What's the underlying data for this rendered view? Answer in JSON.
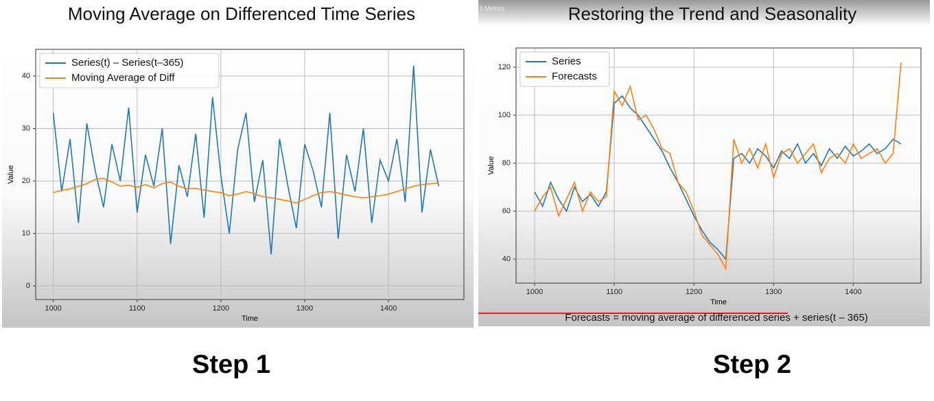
{
  "chart_data": [
    {
      "type": "line",
      "title": "Moving Average on Differenced Time Series",
      "xlabel": "Time",
      "ylabel": "Value",
      "x": [
        1000,
        1010,
        1020,
        1030,
        1040,
        1050,
        1060,
        1070,
        1080,
        1090,
        1100,
        1110,
        1120,
        1130,
        1140,
        1150,
        1160,
        1170,
        1180,
        1190,
        1200,
        1210,
        1220,
        1230,
        1240,
        1250,
        1260,
        1270,
        1280,
        1290,
        1300,
        1310,
        1320,
        1330,
        1340,
        1350,
        1360,
        1370,
        1380,
        1390,
        1400,
        1410,
        1420,
        1430,
        1440,
        1450,
        1460
      ],
      "series": [
        {
          "name": "Series(t) – Series(t–365)",
          "color": "#1f77b4",
          "values": [
            33,
            18,
            28,
            12,
            31,
            22,
            15,
            27,
            20,
            34,
            14,
            25,
            19,
            30,
            8,
            23,
            17,
            29,
            13,
            36,
            21,
            10,
            26,
            33,
            16,
            24,
            6,
            28,
            19,
            11,
            27,
            22,
            15,
            33,
            9,
            25,
            18,
            30,
            12,
            24,
            20,
            28,
            16,
            42,
            14,
            26,
            19
          ]
        },
        {
          "name": "Moving Average of Diff",
          "color": "#ff7f0e",
          "values": [
            17.8,
            18.2,
            18.5,
            19,
            19.5,
            20.3,
            20.5,
            19.8,
            19,
            19.2,
            18.8,
            19.3,
            18.7,
            19.5,
            19.8,
            19,
            18.5,
            18.6,
            18.3,
            18,
            17.8,
            17.2,
            17.5,
            18,
            17.6,
            17,
            16.8,
            16.5,
            16.2,
            15.8,
            16.5,
            17.2,
            17.8,
            18,
            17.7,
            17.3,
            17,
            16.8,
            17,
            17.2,
            17.5,
            18,
            18.5,
            19,
            19.3,
            19.5,
            19.6
          ]
        }
      ],
      "xlim": [
        979,
        1490
      ],
      "ylim": [
        -2.6,
        45.1
      ],
      "xticks": [
        1000,
        1100,
        1200,
        1300,
        1400
      ],
      "yticks": [
        0,
        10,
        20,
        30,
        40
      ],
      "grid": true,
      "legend": "upper left"
    },
    {
      "type": "line",
      "title": "Restoring the Trend and Seasonality",
      "xlabel": "Time",
      "ylabel": "Value",
      "x": [
        1000,
        1010,
        1020,
        1030,
        1040,
        1050,
        1060,
        1070,
        1080,
        1090,
        1100,
        1110,
        1120,
        1130,
        1140,
        1150,
        1160,
        1170,
        1180,
        1190,
        1200,
        1210,
        1220,
        1230,
        1240,
        1250,
        1260,
        1270,
        1280,
        1290,
        1300,
        1310,
        1320,
        1330,
        1340,
        1350,
        1360,
        1370,
        1380,
        1390,
        1400,
        1410,
        1420,
        1430,
        1440,
        1450,
        1460
      ],
      "series": [
        {
          "name": "Series",
          "color": "#1f77b4",
          "values": [
            68,
            62,
            72,
            65,
            60,
            70,
            64,
            67,
            62,
            68,
            105,
            108,
            103,
            100,
            95,
            90,
            85,
            78,
            72,
            65,
            58,
            52,
            47,
            44,
            40,
            82,
            84,
            80,
            86,
            83,
            78,
            85,
            82,
            88,
            80,
            84,
            79,
            86,
            82,
            87,
            83,
            85,
            88,
            84,
            86,
            90,
            88
          ]
        },
        {
          "name": "Forecasts",
          "color": "#ff7f0e",
          "values": [
            60,
            66,
            70,
            58,
            65,
            72,
            60,
            68,
            64,
            66,
            110,
            104,
            112,
            98,
            100,
            94,
            86,
            84,
            72,
            68,
            60,
            50,
            46,
            42,
            36,
            90,
            80,
            86,
            78,
            88,
            74,
            84,
            86,
            80,
            84,
            88,
            76,
            82,
            84,
            80,
            88,
            82,
            84,
            86,
            80,
            84,
            122
          ]
        }
      ],
      "xlim": [
        976.7,
        1485
      ],
      "ylim": [
        30,
        128
      ],
      "xticks": [
        1000,
        1100,
        1200,
        1300,
        1400
      ],
      "yticks": [
        40,
        60,
        80,
        100,
        120
      ],
      "grid": true,
      "legend": "upper left"
    }
  ],
  "labels": {
    "step1": "Step 1",
    "step2": "Step 2",
    "caption": "Forecasts = moving average of differenced series + series(t – 365)",
    "overlay": "5 Metrics"
  }
}
